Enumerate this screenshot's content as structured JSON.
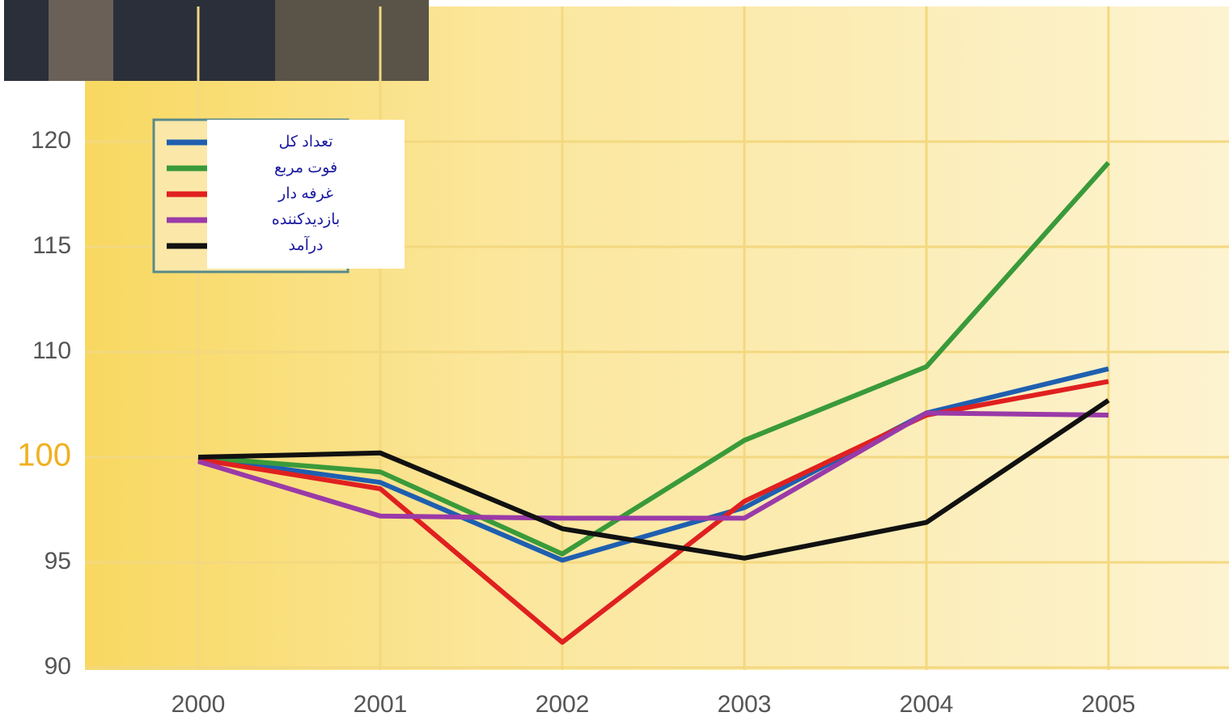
{
  "chart_data": {
    "type": "line",
    "categories": [
      "2000",
      "2001",
      "2002",
      "2003",
      "2004",
      "2005"
    ],
    "series": [
      {
        "name": "تعداد کل",
        "color": "#1f5fb0",
        "values": [
          100,
          98.8,
          95.1,
          97.6,
          104.2,
          108.4
        ]
      },
      {
        "name": "فوت مربع",
        "color": "#3a9a3a",
        "values": [
          100,
          99.3,
          95.4,
          101.6,
          108.6,
          119
        ]
      },
      {
        "name": "غرفه دار",
        "color": "#e02020",
        "values": [
          99.9,
          98.5,
          91.2,
          97.9,
          104,
          107.2
        ]
      },
      {
        "name": "بازدیدکننده",
        "color": "#9a3aa8",
        "values": [
          99.8,
          97.2,
          97.1,
          97.1,
          104.2,
          104
        ]
      },
      {
        "name": "درآمد",
        "color": "#111111",
        "values": [
          100,
          100.4,
          96.6,
          95.2,
          96.9,
          105.4
        ]
      }
    ],
    "ylim": [
      90,
      120
    ],
    "yticks": [
      90,
      95,
      100,
      110,
      115,
      120
    ],
    "grid": true,
    "legend": "top-left"
  }
}
